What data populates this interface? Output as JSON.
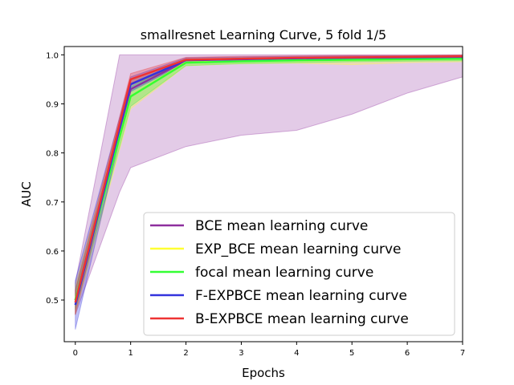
{
  "chart_data": {
    "type": "line",
    "title": "smallresnet Learning Curve, 5 fold 1/5",
    "xlabel": "Epochs",
    "ylabel": "AUC",
    "xlim": [
      -0.2,
      7
    ],
    "ylim": [
      0.415,
      1.017
    ],
    "x": [
      0,
      1,
      2,
      3,
      4,
      5,
      6,
      7
    ],
    "xticks": [
      0,
      1,
      2,
      3,
      4,
      5,
      6,
      7
    ],
    "yticks": [
      0.5,
      0.6,
      0.7,
      0.8,
      0.9,
      1.0
    ],
    "ytick_labels": [
      "0.5",
      "0.6",
      "0.7",
      "0.8",
      "0.9",
      "1.0"
    ],
    "grid": false,
    "legend_position": "lower-right",
    "series": [
      {
        "name": "BCE mean learning curve",
        "color": "#8e2f9e",
        "values": [
          0.5,
          0.93,
          0.988,
          0.992,
          0.993,
          0.994,
          0.995,
          0.995
        ],
        "band_upper": [
          0.535,
          1.0,
          1.0,
          1.0,
          1.0,
          1.0,
          1.0,
          1.0
        ],
        "band_lower": [
          0.47,
          0.77,
          0.813,
          0.836,
          0.846,
          0.879,
          0.922,
          0.955
        ],
        "band_x": [
          0,
          0.8,
          1,
          2,
          3,
          4,
          5,
          6,
          7
        ],
        "band_upper_path": [
          0.535,
          1.0,
          1.0,
          1.0,
          1.0,
          1.0,
          1.0,
          1.0,
          1.0
        ],
        "band_lower_path": [
          0.47,
          0.72,
          0.77,
          0.813,
          0.836,
          0.846,
          0.879,
          0.922,
          0.955
        ]
      },
      {
        "name": "EXP_BCE mean learning curve",
        "color": "#ffff33",
        "values": [
          0.5,
          0.915,
          0.985,
          0.988,
          0.989,
          0.99,
          0.991,
          0.992
        ],
        "band_upper": [
          0.53,
          0.95,
          0.992,
          0.994,
          0.995,
          0.996,
          0.997,
          0.998
        ],
        "band_lower": [
          0.47,
          0.89,
          0.978,
          0.982,
          0.983,
          0.98,
          0.984,
          0.986
        ]
      },
      {
        "name": "focal mean learning curve",
        "color": "#33ff33",
        "values": [
          0.5,
          0.915,
          0.984,
          0.987,
          0.989,
          0.99,
          0.991,
          0.992
        ],
        "band_upper": [
          0.52,
          0.935,
          0.99,
          0.992,
          0.993,
          0.994,
          0.995,
          0.996
        ],
        "band_lower": [
          0.48,
          0.895,
          0.978,
          0.982,
          0.984,
          0.986,
          0.987,
          0.988
        ]
      },
      {
        "name": "F-EXPBCE mean learning curve",
        "color": "#3333dd",
        "values": [
          0.49,
          0.94,
          0.989,
          0.991,
          0.993,
          0.994,
          0.995,
          0.996
        ],
        "band_upper": [
          0.54,
          0.955,
          0.994,
          0.996,
          0.997,
          0.998,
          0.998,
          0.999
        ],
        "band_lower": [
          0.44,
          0.925,
          0.984,
          0.986,
          0.989,
          0.99,
          0.992,
          0.993
        ]
      },
      {
        "name": "B-EXPBCE mean learning curve",
        "color": "#ee3333",
        "values": [
          0.495,
          0.95,
          0.99,
          0.992,
          0.994,
          0.995,
          0.996,
          0.997
        ],
        "band_upper": [
          0.52,
          0.962,
          0.995,
          0.997,
          0.998,
          0.999,
          0.999,
          1.0
        ],
        "band_lower": [
          0.47,
          0.938,
          0.985,
          0.987,
          0.99,
          0.991,
          0.993,
          0.994
        ]
      }
    ]
  }
}
